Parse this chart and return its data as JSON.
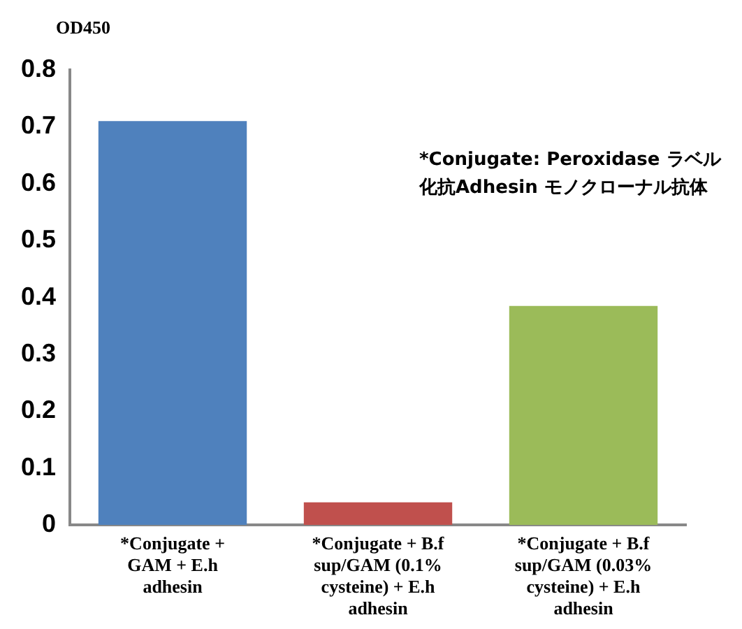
{
  "chart_data": {
    "type": "bar",
    "ylabel": "OD450",
    "categories": [
      "*Conjugate + GAM + E.h adhesin",
      "*Conjugate + B.f sup/GAM (0.1% cysteine) + E.h adhesin",
      "*Conjugate + B.f sup/GAM (0.03% cysteine) + E.h adhesin"
    ],
    "values": [
      0.71,
      0.04,
      0.385
    ],
    "colors": [
      "#4f81bd",
      "#c0504d",
      "#9bbb59"
    ],
    "ylim": [
      0,
      0.8
    ],
    "yticks": [
      0,
      0.1,
      0.2,
      0.3,
      0.4,
      0.5,
      0.6,
      0.7,
      0.8
    ],
    "grid": false,
    "legend": false,
    "annotations": [
      "*Conjugate: Peroxidase ラベル化抗Adhesin モノクローナル抗体"
    ]
  }
}
